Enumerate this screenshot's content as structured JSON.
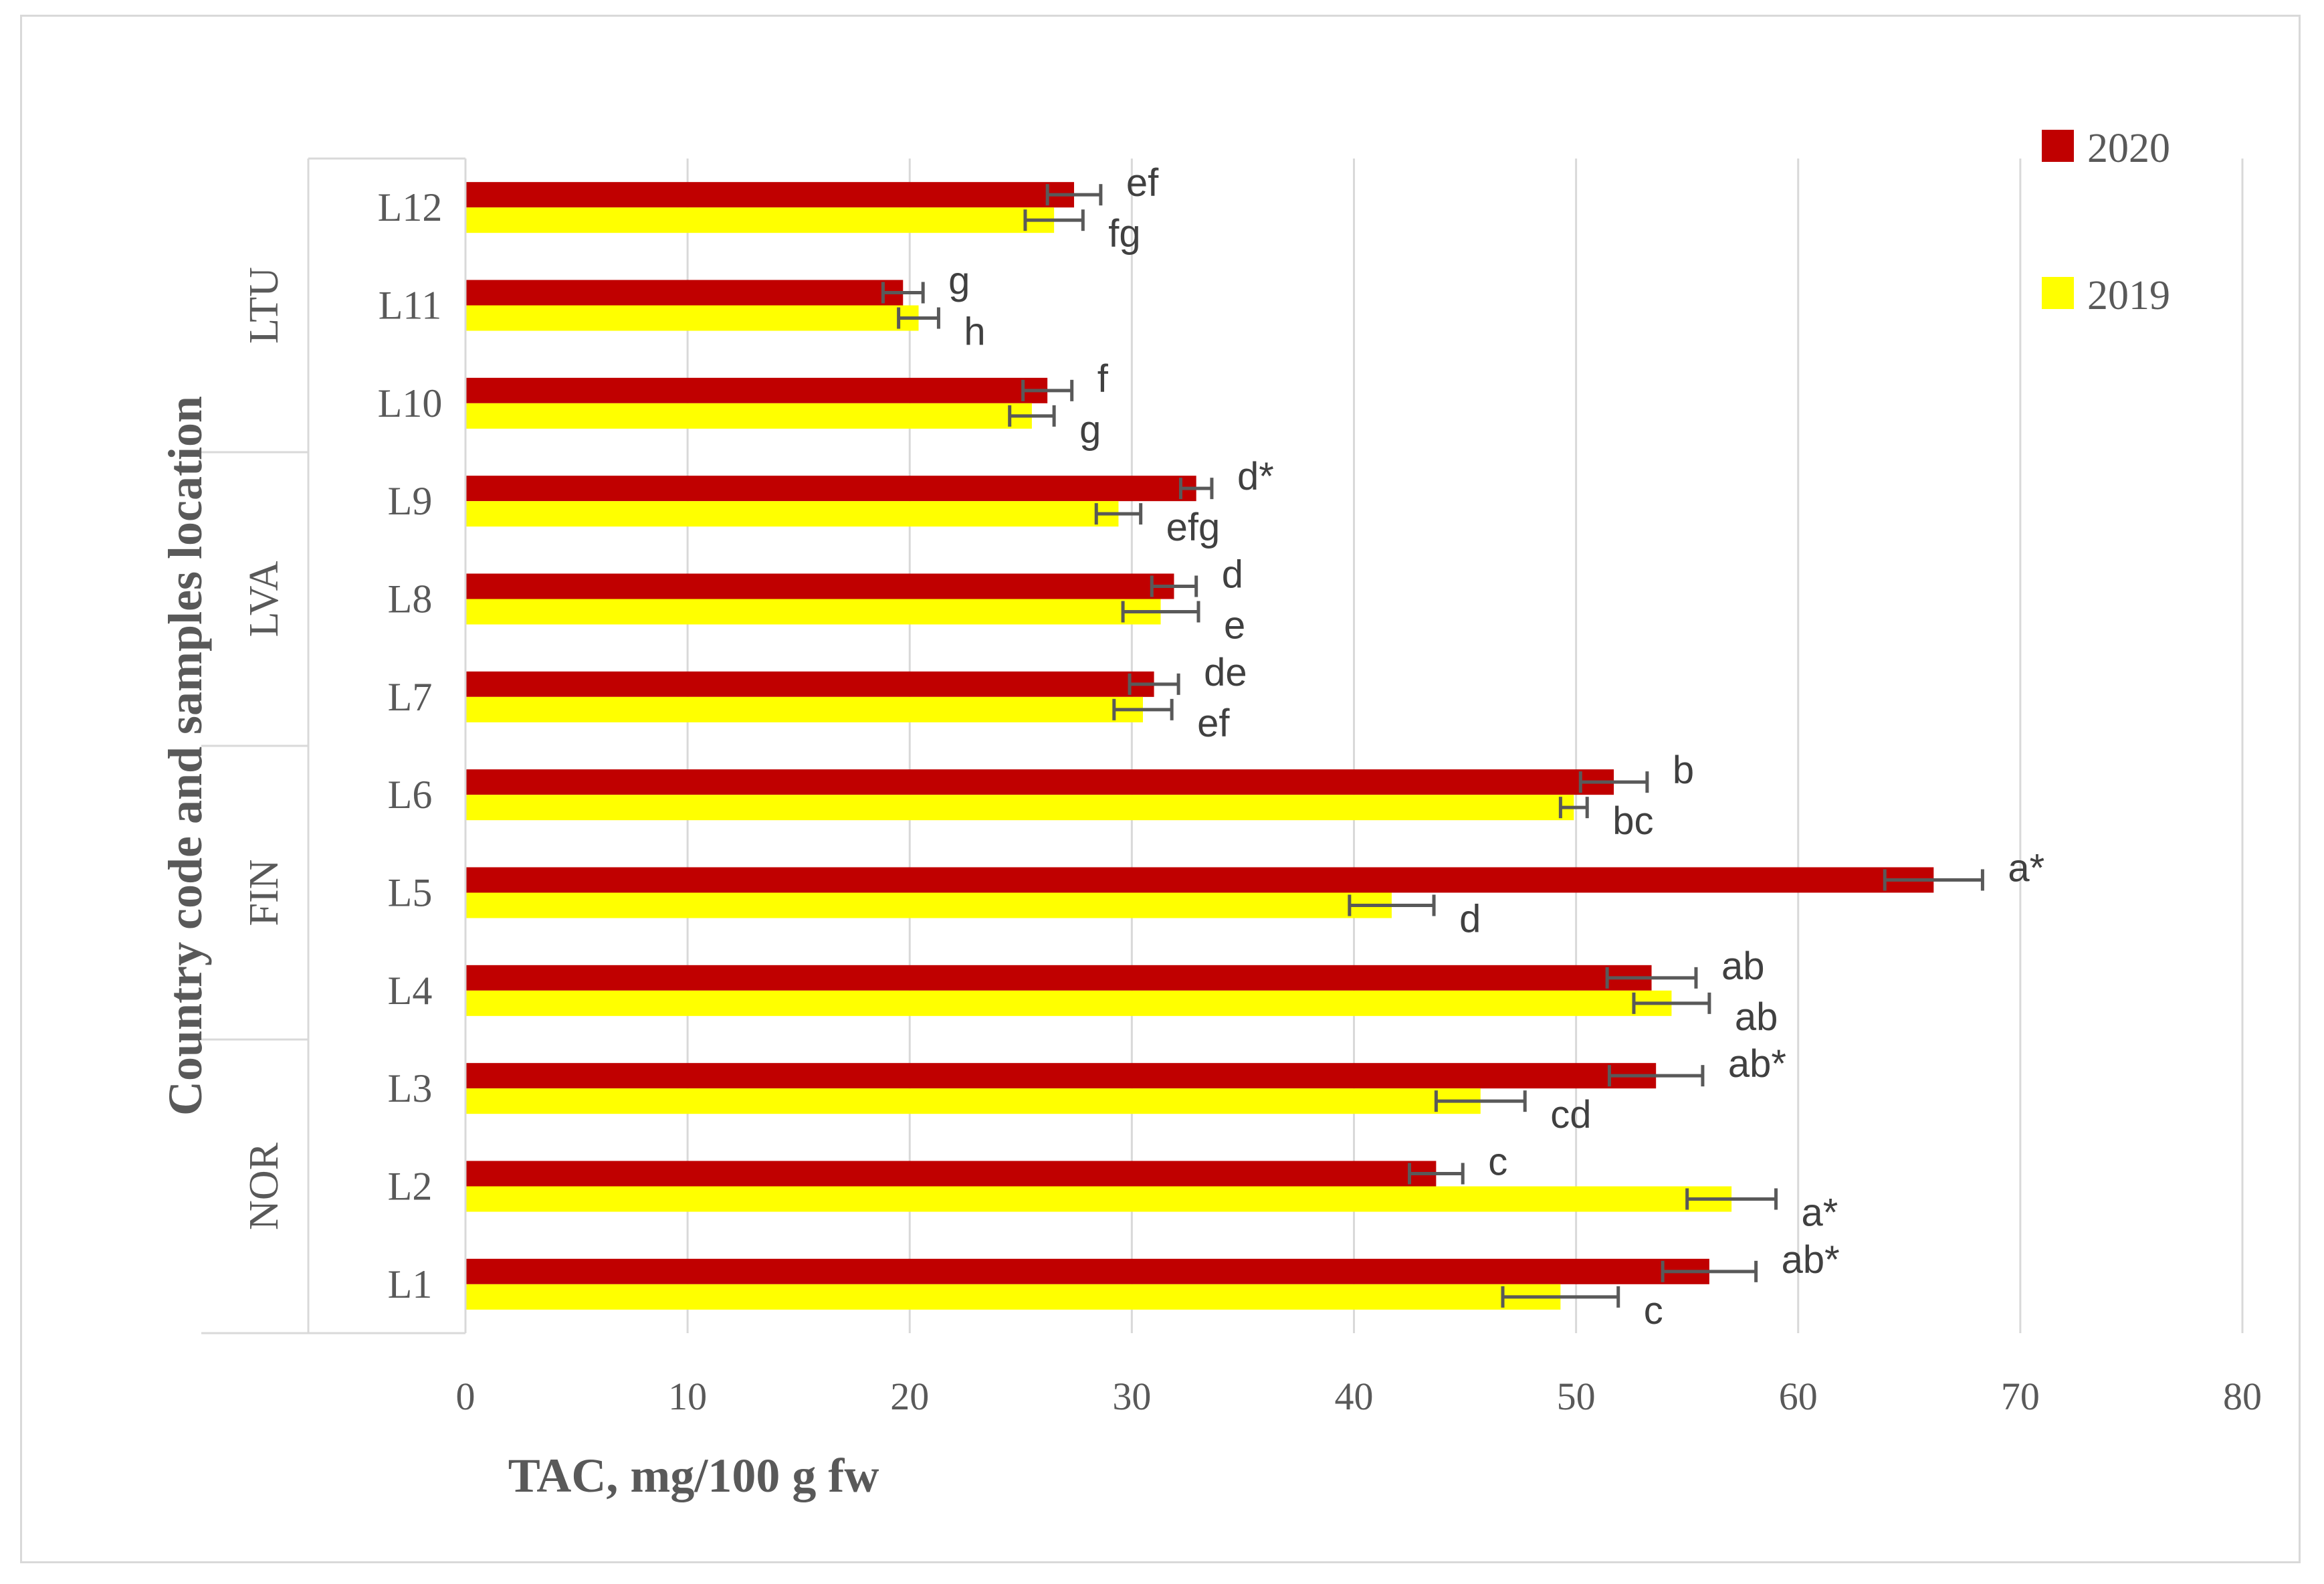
{
  "chart_data": {
    "type": "bar",
    "orientation": "horizontal",
    "title": "",
    "xlabel": "TAC, mg/100 g fw",
    "ylabel": "Country code and samples location",
    "xlim": [
      0,
      80
    ],
    "xticks": [
      "0",
      "10",
      "20",
      "30",
      "40",
      "50",
      "60",
      "70",
      "80"
    ],
    "grid": true,
    "legend_position": "top-right",
    "categories": [
      "L1",
      "L2",
      "L3",
      "L4",
      "L5",
      "L6",
      "L7",
      "L8",
      "L9",
      "L10",
      "L11",
      "L12"
    ],
    "groups": [
      {
        "name": "NOR",
        "categories": [
          "L1",
          "L2",
          "L3"
        ]
      },
      {
        "name": "FIN",
        "categories": [
          "L4",
          "L5",
          "L6"
        ]
      },
      {
        "name": "LVA",
        "categories": [
          "L7",
          "L8",
          "L9"
        ]
      },
      {
        "name": "LTU",
        "categories": [
          "L10",
          "L11",
          "L12"
        ]
      }
    ],
    "series": [
      {
        "name": "2020",
        "color": "#c00000",
        "values": [
          56.0,
          43.7,
          53.6,
          53.4,
          66.1,
          51.7,
          31.0,
          31.9,
          32.9,
          26.2,
          19.7,
          27.4
        ],
        "errors": [
          2.1,
          1.2,
          2.1,
          2.0,
          2.2,
          1.5,
          1.1,
          1.0,
          0.7,
          1.1,
          0.9,
          1.2
        ],
        "labels": [
          "ab*",
          "c",
          "ab*",
          "ab",
          "a*",
          "b",
          "de",
          "d",
          "d*",
          "f",
          "g",
          "ef"
        ]
      },
      {
        "name": "2019",
        "color": "#ffff00",
        "values": [
          49.3,
          57.0,
          45.7,
          54.3,
          41.7,
          49.9,
          30.5,
          31.3,
          29.4,
          25.5,
          20.4,
          26.5
        ],
        "errors": [
          2.6,
          2.0,
          2.0,
          1.7,
          1.9,
          0.6,
          1.3,
          1.7,
          1.0,
          1.0,
          0.9,
          1.3
        ],
        "labels": [
          "c",
          "a*",
          "cd",
          "ab",
          "d",
          "bc",
          "ef",
          "e",
          "efg",
          "g",
          "h",
          "fg"
        ]
      }
    ]
  }
}
